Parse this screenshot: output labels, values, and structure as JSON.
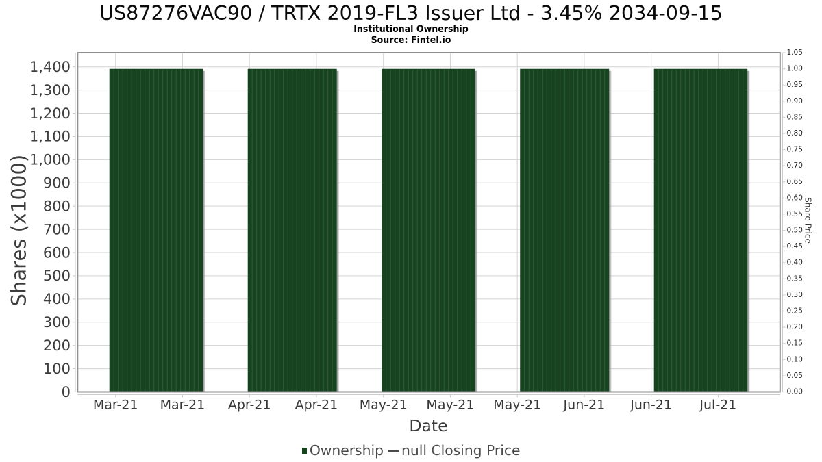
{
  "chart_data": {
    "type": "bar",
    "title": "US87276VAC90 / TRTX 2019-FL3 Issuer Ltd - 3.45% 2034-09-15",
    "subtitle": "Institutional Ownership",
    "source": "Source: Fintel.io",
    "xlabel": "Date",
    "ylabel": "Shares (x1000)",
    "y2label": "Share Price",
    "x_tick_labels": [
      "Mar-21",
      "Mar-21",
      "Apr-21",
      "Apr-21",
      "May-21",
      "May-21",
      "May-21",
      "Jun-21",
      "Jun-21",
      "Jul-21"
    ],
    "y_tick_labels": [
      "0",
      "100",
      "200",
      "300",
      "400",
      "500",
      "600",
      "700",
      "800",
      "900",
      "1,000",
      "1,100",
      "1,200",
      "1,300",
      "1,400"
    ],
    "y_tick_values": [
      0,
      100,
      200,
      300,
      400,
      500,
      600,
      700,
      800,
      900,
      1000,
      1100,
      1200,
      1300,
      1400
    ],
    "y2_tick_labels": [
      "0.00",
      "0.05",
      "0.10",
      "0.15",
      "0.20",
      "0.25",
      "0.30",
      "0.35",
      "0.40",
      "0.45",
      "0.50",
      "0.55",
      "0.60",
      "0.65",
      "0.70",
      "0.75",
      "0.80",
      "0.85",
      "0.90",
      "0.95",
      "1.00",
      "1.05"
    ],
    "y2_tick_values": [
      0,
      0.05,
      0.1,
      0.15,
      0.2,
      0.25,
      0.3,
      0.35,
      0.4,
      0.45,
      0.5,
      0.55,
      0.6,
      0.65,
      0.7,
      0.75,
      0.8,
      0.85,
      0.9,
      0.95,
      1.0,
      1.05
    ],
    "ylim": [
      0,
      1461
    ],
    "y2lim": [
      0,
      1.05
    ],
    "grid": true,
    "legend_position": "bottom-center",
    "series": [
      {
        "name": "Ownership",
        "type": "bar",
        "color": "#16441f",
        "value": 1391,
        "bar_groups": [
          {
            "bar_count": 21,
            "value": 1391
          },
          {
            "bar_count": 20,
            "value": 1391
          },
          {
            "bar_count": 21,
            "value": 1391
          },
          {
            "bar_count": 20,
            "value": 1391
          },
          {
            "bar_count": 21,
            "value": 1391
          }
        ]
      },
      {
        "name": "null Closing Price",
        "type": "line",
        "color": "#4a4a4a",
        "values": []
      }
    ],
    "colors": {
      "bar_fill": "#16441f",
      "bar_stripe": "#33573b",
      "bar_shadow": "#8f8f8f",
      "grid_line": "#d3d3d3",
      "plot_border": "#909090",
      "axis_ruler": "#cbcbcb",
      "tick_text": "#3a3a3a",
      "background": "#ffffff"
    }
  },
  "legend": {
    "items": [
      {
        "label": "Ownership",
        "swatch": "bar",
        "color": "#16441f"
      },
      {
        "label": "null Closing Price",
        "swatch": "line",
        "color": "#4a4a4a"
      }
    ]
  }
}
